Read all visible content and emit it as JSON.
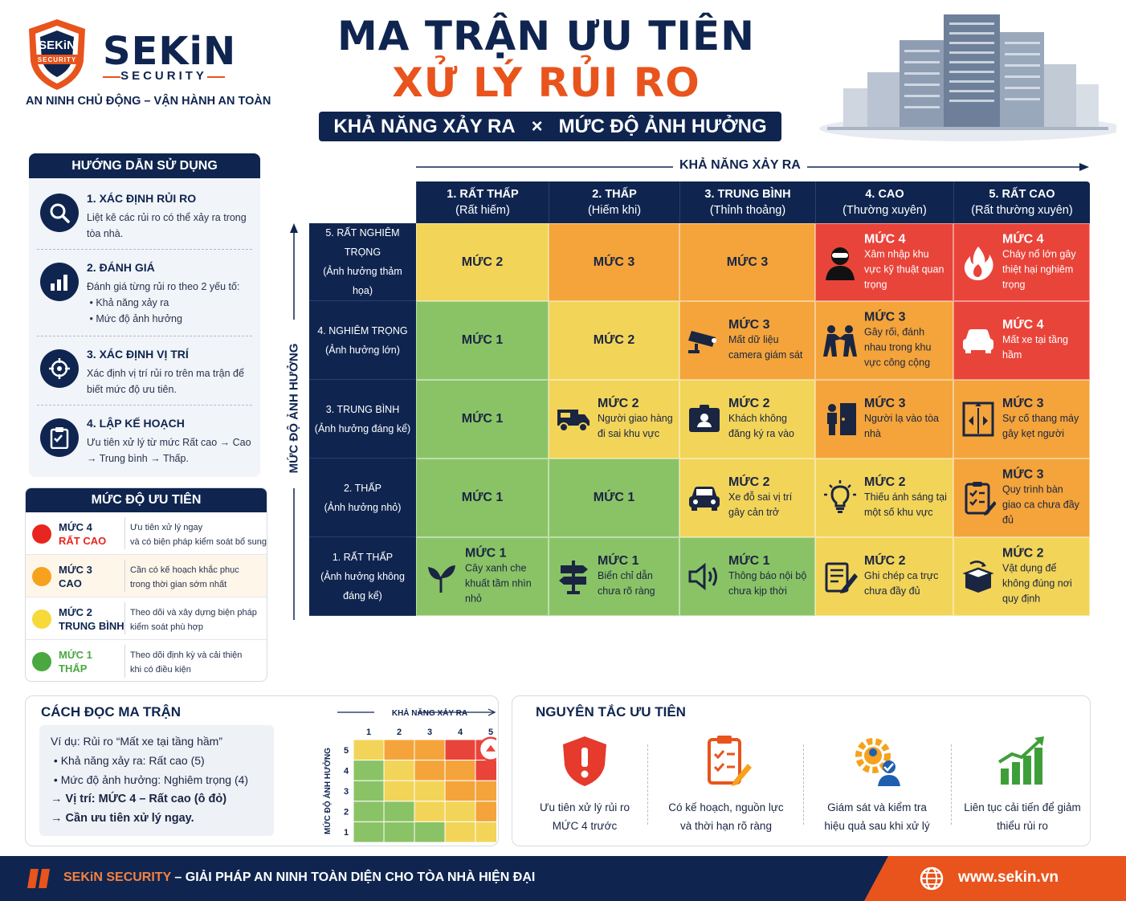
{
  "brand": {
    "name": "SEKiN",
    "security": "SECURITY",
    "shield_top": "SEKiN",
    "shield_band": "SECURITY",
    "tagline": "AN NINH CHỦ ĐỘNG – VẬN HÀNH AN TOÀN"
  },
  "title": {
    "line1": "MA TRẬN ƯU TIÊN",
    "line2": "XỬ LÝ RỦI RO",
    "sub_left": "KHẢ NĂNG XẢY RA",
    "sub_x": "×",
    "sub_right": "MỨC ĐỘ ẢNH HƯỞNG"
  },
  "guide": {
    "title": "HƯỚNG DẪN SỬ DỤNG",
    "steps": [
      {
        "title": "1. XÁC ĐỊNH RỦI RO",
        "desc": "Liệt kê các rủi ro có thể xảy ra trong tòa nhà.",
        "icon": "search-icon"
      },
      {
        "title": "2. ĐÁNH GIÁ",
        "desc": "Đánh giá từng rủi ro theo 2 yếu tố:",
        "bullet1": "Khả năng xảy ra",
        "bullet2": "Mức độ ảnh hưởng",
        "icon": "bar-chart-icon"
      },
      {
        "title": "3. XÁC ĐỊNH VỊ TRÍ",
        "desc": "Xác định vị trí rủi ro trên ma trận để biết mức độ ưu tiên.",
        "icon": "crosshair-icon"
      },
      {
        "title": "4. LẬP KẾ HOẠCH",
        "desc": "Ưu tiên xử lý từ mức Rất cao → Cao → Trung bình → Thấp.",
        "icon": "clipboard-icon"
      }
    ]
  },
  "priority": {
    "title": "MỨC ĐỘ ƯU TIÊN",
    "levels": [
      {
        "level": "MỨC 4",
        "name": "RẤT CAO",
        "desc1": "Ưu tiên xử lý ngay",
        "desc2": "và có biện pháp kiểm soát bổ sung",
        "color": "#e8261f"
      },
      {
        "level": "MỨC 3",
        "name": "CAO",
        "desc1": "Cần có kế hoạch khắc phục",
        "desc2": "trong thời gian sớm nhất",
        "color": "#f6a21c"
      },
      {
        "level": "MỨC 2",
        "name": "TRUNG BÌNH",
        "desc1": "Theo dõi và xây dựng biện pháp",
        "desc2": "kiểm soát phù hợp",
        "color": "#f7d93a"
      },
      {
        "level": "MỨC 1",
        "name": "THẤP",
        "desc1": "Theo dõi định kỳ và cải thiện",
        "desc2": "khi có điều kiện",
        "color": "#4aa840"
      }
    ]
  },
  "matrix": {
    "x_axis": "KHẢ NĂNG XẢY RA",
    "y_axis": "MỨC ĐỘ ẢNH HƯỞNG",
    "columns": [
      {
        "name": "1. RẤT THẤP",
        "sub": "(Rất hiếm)"
      },
      {
        "name": "2. THẤP",
        "sub": "(Hiếm khi)"
      },
      {
        "name": "3. TRUNG BÌNH",
        "sub": "(Thỉnh thoảng)"
      },
      {
        "name": "4. CAO",
        "sub": "(Thường xuyên)"
      },
      {
        "name": "5. RẤT CAO",
        "sub": "(Rất thường xuyên)"
      }
    ],
    "rows": [
      {
        "name": "5. RẤT NGHIÊM TRỌNG",
        "sub": "(Ảnh hưởng thảm họa)",
        "cells": [
          {
            "level": "MỨC 2",
            "tone": 2
          },
          {
            "level": "MỨC 3",
            "tone": 3
          },
          {
            "level": "MỨC 3",
            "tone": 3
          },
          {
            "level": "MỨC 4",
            "tone": 4,
            "desc": "Xâm nhập khu vực kỹ thuật quan trọng",
            "icon": "intruder-icon"
          },
          {
            "level": "MỨC 4",
            "tone": 4,
            "desc": "Cháy nổ lớn gây thiệt hại nghiêm trọng",
            "icon": "fire-icon"
          }
        ]
      },
      {
        "name": "4. NGHIÊM TRỌNG",
        "sub": "(Ảnh hưởng lớn)",
        "cells": [
          {
            "level": "MỨC 1",
            "tone": 1
          },
          {
            "level": "MỨC 2",
            "tone": 2
          },
          {
            "level": "MỨC 3",
            "tone": 3,
            "desc": "Mất dữ liệu camera giám sát",
            "icon": "cctv-icon"
          },
          {
            "level": "MỨC 3",
            "tone": 3,
            "desc": "Gây rối, đánh nhau trong khu vực công cộng",
            "icon": "fight-icon"
          },
          {
            "level": "MỨC 4",
            "tone": 4,
            "desc": "Mất xe tại tầng hầm",
            "icon": "car-icon"
          }
        ]
      },
      {
        "name": "3. TRUNG BÌNH",
        "sub": "(Ảnh hưởng đáng kể)",
        "cells": [
          {
            "level": "MỨC 1",
            "tone": 1
          },
          {
            "level": "MỨC 2",
            "tone": 2,
            "desc": "Người giao hàng đi sai khu vực",
            "icon": "delivery-truck-icon"
          },
          {
            "level": "MỨC 2",
            "tone": 2,
            "desc": "Khách không đăng ký ra vào",
            "icon": "id-card-icon"
          },
          {
            "level": "MỨC 3",
            "tone": 3,
            "desc": "Người lạ vào tòa nhà",
            "icon": "stranger-door-icon"
          },
          {
            "level": "MỨC 3",
            "tone": 3,
            "desc": "Sự cố thang máy gây kẹt người",
            "icon": "elevator-icon"
          }
        ]
      },
      {
        "name": "2. THẤP",
        "sub": "(Ảnh hưởng nhỏ)",
        "cells": [
          {
            "level": "MỨC 1",
            "tone": 1
          },
          {
            "level": "MỨC 1",
            "tone": 1
          },
          {
            "level": "MỨC 2",
            "tone": 2,
            "desc": "Xe đỗ sai vị trí gây cản trở",
            "icon": "car-icon"
          },
          {
            "level": "MỨC 2",
            "tone": 2,
            "desc": "Thiếu ánh sáng tại một số khu vực",
            "icon": "lightbulb-icon"
          },
          {
            "level": "MỨC 3",
            "tone": 3,
            "desc": "Quy trình bàn giao ca chưa đầy đủ",
            "icon": "checklist-icon"
          }
        ]
      },
      {
        "name": "1. RẤT THẤP",
        "sub": "(Ảnh hưởng không đáng kể)",
        "cells": [
          {
            "level": "MỨC 1",
            "tone": 1,
            "desc": "Cây xanh che khuất tầm nhìn nhỏ",
            "icon": "plant-icon"
          },
          {
            "level": "MỨC 1",
            "tone": 1,
            "desc": "Biển chỉ dẫn chưa rõ ràng",
            "icon": "signpost-icon"
          },
          {
            "level": "MỨC 1",
            "tone": 1,
            "desc": "Thông báo nội bộ chưa kịp thời",
            "icon": "speaker-icon"
          },
          {
            "level": "MỨC 2",
            "tone": 2,
            "desc": "Ghi chép ca trực chưa đầy đủ",
            "icon": "note-icon"
          },
          {
            "level": "MỨC 2",
            "tone": 2,
            "desc": "Vật dụng để không đúng nơi quy định",
            "icon": "box-icon"
          }
        ]
      }
    ]
  },
  "reading": {
    "title": "CÁCH ĐỌC MA TRẬN",
    "example": "Ví dụ: Rủi ro “Mất xe tại tầng hầm”",
    "b1": "Khả năng xảy ra: Rất cao (5)",
    "b2": "Mức độ ảnh hưởng: Nghiêm trọng (4)",
    "r1": "→ Vị trí: MỨC 4 – Rất cao (ô đỏ)",
    "r2": "→ Cần ưu tiên xử lý ngay.",
    "mini_x": "KHẢ NĂNG XẢY RA",
    "mini_y": "MỨC ĐỘ ẢNH HƯỞNG",
    "mini_ticks": [
      "1",
      "2",
      "3",
      "4",
      "5"
    ]
  },
  "principles": {
    "title": "NGUYÊN TẮC ƯU TIÊN",
    "items": [
      {
        "line1": "Ưu tiên xử lý rủi ro",
        "line2": "MỨC 4 trước",
        "icon": "alert-shield-icon"
      },
      {
        "line1": "Có kế hoạch, nguồn lực",
        "line2": "và thời hạn rõ ràng",
        "icon": "plan-clipboard-icon"
      },
      {
        "line1": "Giám sát và kiểm tra",
        "line2": "hiệu quả sau khi xử lý",
        "icon": "gear-person-icon"
      },
      {
        "line1": "Liên tục cải tiến để giảm",
        "line2": "thiểu rủi ro",
        "icon": "growth-chart-icon"
      }
    ]
  },
  "footer": {
    "brand": "SEKiN SECURITY",
    "text": " – GIẢI PHÁP AN NINH TOÀN DIỆN CHO TÒA NHÀ HIỆN ĐẠI",
    "website": "www.sekin.vn"
  },
  "colors": {
    "navy": "#0f2550",
    "orange": "#e8541c",
    "green": "#8ac366",
    "yellow": "#f2d458",
    "amber": "#f4a43a",
    "red": "#e9443a"
  }
}
